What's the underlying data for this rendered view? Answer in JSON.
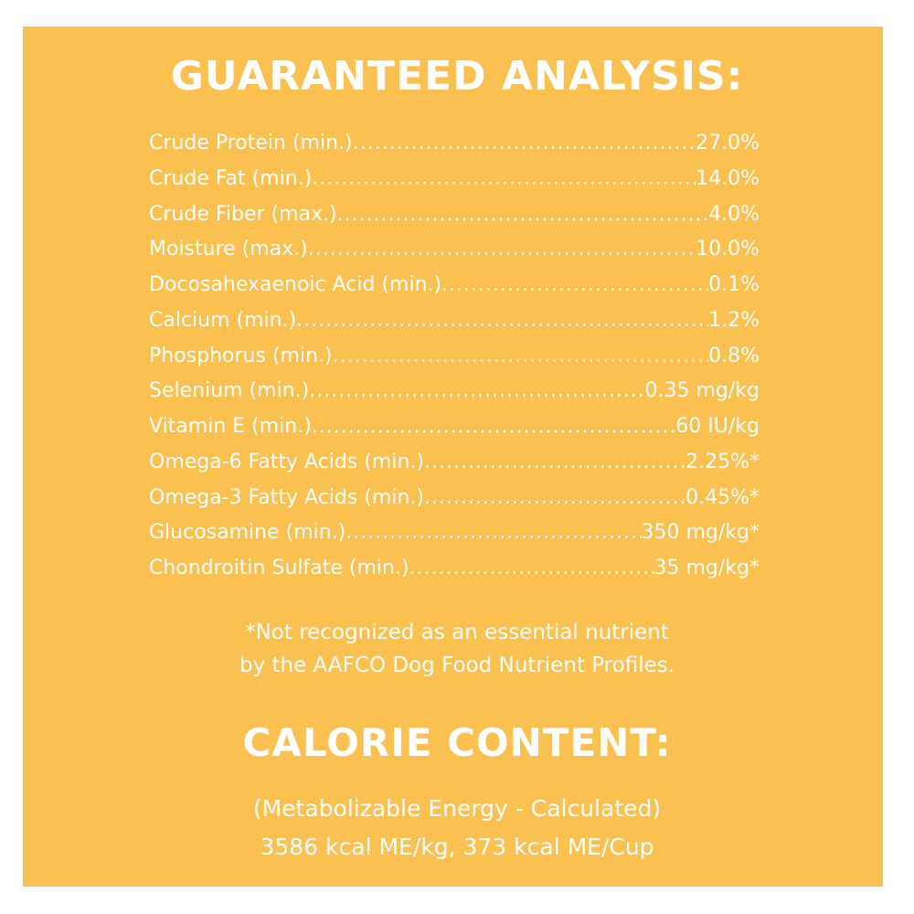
{
  "guaranteed_analysis": {
    "title": "GUARANTEED ANALYSIS:",
    "rows": [
      {
        "label": "Crude Protein (min.)",
        "value": "27.0%"
      },
      {
        "label": "Crude Fat (min.)",
        "value": "14.0%"
      },
      {
        "label": "Crude Fiber (max.)",
        "value": "4.0%"
      },
      {
        "label": "Moisture (max.)",
        "value": "10.0%"
      },
      {
        "label": "Docosahexaenoic Acid (min.)",
        "value": "0.1%"
      },
      {
        "label": "Calcium (min.)",
        "value": "1.2%"
      },
      {
        "label": "Phosphorus (min.)",
        "value": "0.8%"
      },
      {
        "label": "Selenium (min.)",
        "value": "0.35 mg/kg"
      },
      {
        "label": "Vitamin E (min.)",
        "value": "60 IU/kg"
      },
      {
        "label": "Omega-6 Fatty Acids (min.)",
        "value": "2.25%*"
      },
      {
        "label": "Omega-3 Fatty Acids (min.)",
        "value": "0.45%*"
      },
      {
        "label": "Glucosamine (min.)",
        "value": "350 mg/kg*"
      },
      {
        "label": "Chondroitin Sulfate (min.)",
        "value": "35 mg/kg*"
      }
    ],
    "footnote": [
      "*Not recognized as an essential nutrient",
      "by the AAFCO Dog Food Nutrient Profiles."
    ]
  },
  "calorie_content": {
    "title": "CALORIE CONTENT:",
    "lines": [
      "(Metabolizable Energy - Calculated)",
      "3586 kcal ME/kg, 373 kcal ME/Cup"
    ]
  },
  "colors": {
    "panel": "#fac050",
    "text": "#ffffff"
  }
}
